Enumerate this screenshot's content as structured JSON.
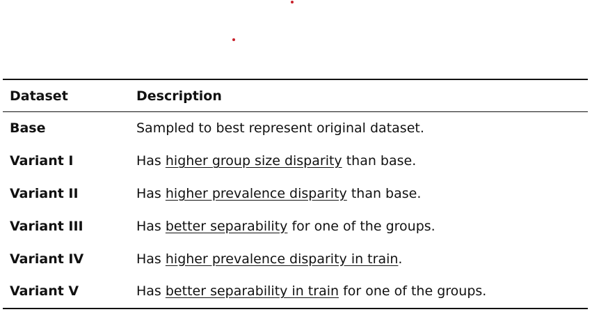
{
  "table": {
    "headers": {
      "dataset": "Dataset",
      "description": "Description"
    },
    "rows": [
      {
        "name": "Base",
        "pre": "Sampled to best represent original dataset.",
        "u": "",
        "post": ""
      },
      {
        "name": "Variant I",
        "pre": "Has ",
        "u": "higher group size disparity",
        "post": " than base."
      },
      {
        "name": "Variant II",
        "pre": "Has ",
        "u": "higher prevalence disparity",
        "post": " than base."
      },
      {
        "name": "Variant III",
        "pre": "Has ",
        "u": "better separability",
        "post": " for one of the groups."
      },
      {
        "name": "Variant IV",
        "pre": "Has ",
        "u": "higher prevalence disparity in train",
        "post": "."
      },
      {
        "name": "Variant V",
        "pre": "Has ",
        "u": "better separability in train",
        "post": " for one of the groups."
      }
    ]
  },
  "colors": {
    "text": "#111111",
    "rule": "#111111",
    "dot": "#c8202a"
  }
}
